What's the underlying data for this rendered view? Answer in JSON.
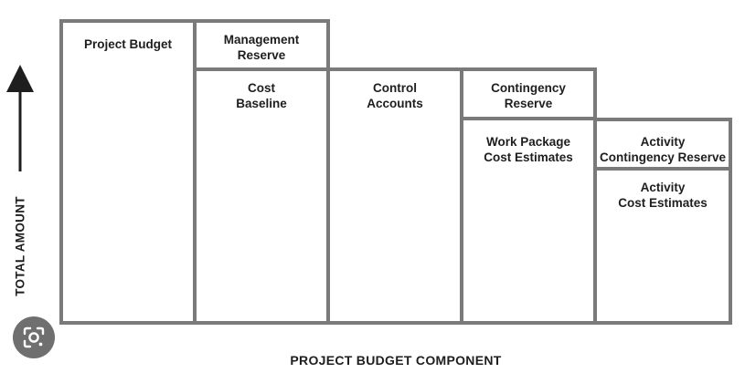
{
  "diagram": {
    "y_axis_label": "TOTAL AMOUNT",
    "x_axis_label": "PROJECT BUDGET COMPONENT",
    "boxes": {
      "project_budget": "Project Budget",
      "management_reserve": "Management\nReserve",
      "cost_baseline": "Cost\nBaseline",
      "control_accounts": "Control\nAccounts",
      "contingency_reserve": "Contingency\nReserve",
      "work_package_cost_estimates": "Work Package\nCost Estimates",
      "activity_contingency_reserve": "Activity\nContingency Reserve",
      "activity_cost_estimates": "Activity\nCost Estimates"
    },
    "colors": {
      "box_stroke": "#7a7a7a",
      "text": "#1e1e1e",
      "arrow": "#1e1e1e",
      "lens_button_bg": "#6f6f6f"
    }
  },
  "overlay": {
    "lens_icon": "google-lens-icon"
  }
}
